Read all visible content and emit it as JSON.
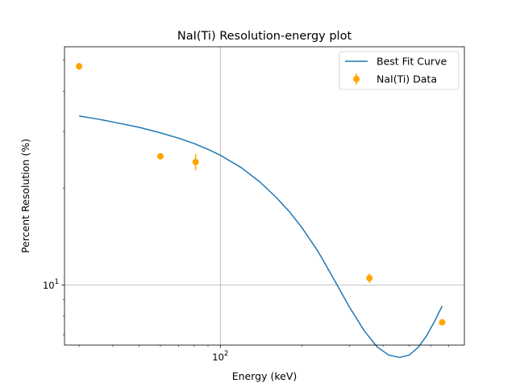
{
  "chart_data": {
    "type": "scatter",
    "title": "NaI(Ti) Resolution-energy plot",
    "xlabel": "Energy (keV)",
    "ylabel": "Percent Resolution (%)",
    "xscale": "log",
    "yscale": "log",
    "xlim": [
      26.5,
      800
    ],
    "ylim": [
      6.5,
      55
    ],
    "grid": "major",
    "legend_position": "top-right",
    "x_tick_labels": [
      {
        "value": 100,
        "base": "10",
        "exponent": "2"
      }
    ],
    "y_tick_labels": [
      {
        "value": 10,
        "base": "10",
        "exponent": "1"
      }
    ],
    "series": [
      {
        "name": "Best Fit Curve",
        "kind": "line",
        "color": "#1f77b4",
        "x": [
          30,
          35,
          40,
          50,
          60,
          70,
          80,
          90,
          100,
          120,
          140,
          160,
          180,
          200,
          230,
          260,
          300,
          340,
          380,
          420,
          460,
          500,
          540,
          580,
          620,
          662
        ],
        "y": [
          33.5,
          32.8,
          32.1,
          30.9,
          29.7,
          28.6,
          27.5,
          26.4,
          25.3,
          23.1,
          20.9,
          18.8,
          16.9,
          15.1,
          12.7,
          10.6,
          8.55,
          7.22,
          6.42,
          6.05,
          5.95,
          6.05,
          6.4,
          6.95,
          7.7,
          8.6
        ]
      },
      {
        "name": "NaI(Ti) Data",
        "kind": "errorbar",
        "color": "#ffa500",
        "x": [
          30,
          60,
          81,
          356,
          662
        ],
        "y": [
          47.8,
          25.1,
          24.1,
          10.5,
          7.65
        ],
        "yerr": [
          1.2,
          0.5,
          1.4,
          0.35,
          0.15
        ]
      }
    ]
  }
}
